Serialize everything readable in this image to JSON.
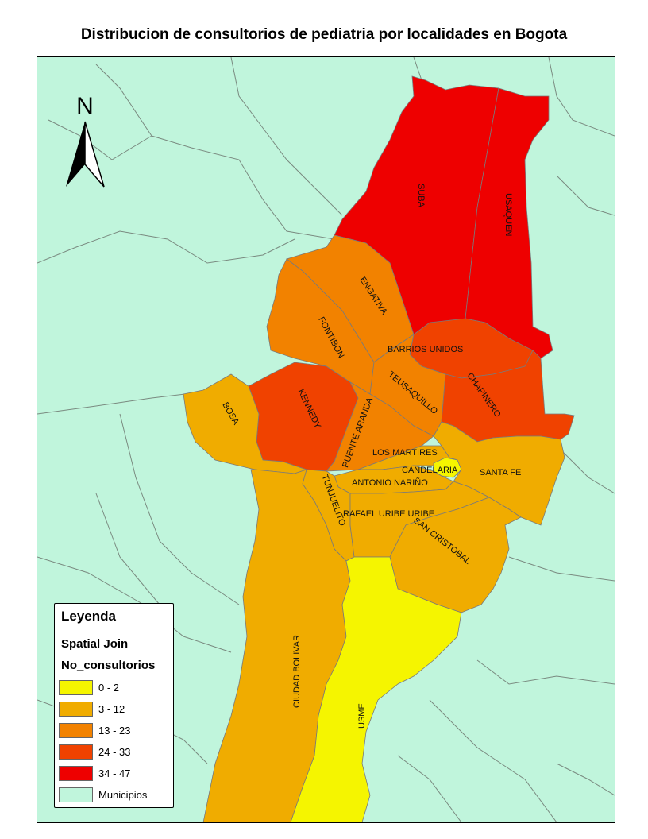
{
  "title": "Distribucion de consultorios de pediatria por localidades en Bogota",
  "north_arrow": {
    "letter": "N",
    "icon": "north-arrow-icon"
  },
  "colors": {
    "background": "#c0f5dc",
    "class_0_2": "#f5f500",
    "class_3_12": "#f0ac00",
    "class_13_23": "#f28200",
    "class_24_33": "#f04200",
    "class_34_47": "#ee0000",
    "municipios": "#c0f5dc"
  },
  "localidades": {
    "suba": "SUBA",
    "usaquen": "USAQUEN",
    "engativa": "ENGATIVA",
    "fontibon": "FONTIBON",
    "barrios_unidos": "BARRIOS UNIDOS",
    "teusaquillo": "TEUSAQUILLO",
    "chapinero": "CHAPINERO",
    "kennedy": "KENNEDY",
    "bosa": "BOSA",
    "puente_aranda": "PUENTE ARANDA",
    "los_martires": "LOS MARTIRES",
    "candelaria": "CANDELARIA",
    "santa_fe": "SANTA FE",
    "antonio_narino": "ANTONIO NARIÑO",
    "tunjuelito": "TUNJUELITO",
    "rafael_uribe_uribe": "RAFAEL URIBE URIBE",
    "san_cristobal": "SAN CRISTOBAL",
    "ciudad_bolivar": "CIUDAD BOLIVAR",
    "usme": "USME"
  },
  "legend": {
    "title": "Leyenda",
    "layer": "Spatial Join",
    "field": "No_consultorios",
    "items": [
      {
        "label": "0 - 2",
        "color": "#f5f500"
      },
      {
        "label": "3 - 12",
        "color": "#f0ac00"
      },
      {
        "label": "13 - 23",
        "color": "#f28200"
      },
      {
        "label": "24 - 33",
        "color": "#f04200"
      },
      {
        "label": "34 - 47",
        "color": "#ee0000"
      },
      {
        "label": "Municipios",
        "color": "#c0f5dc"
      }
    ]
  }
}
